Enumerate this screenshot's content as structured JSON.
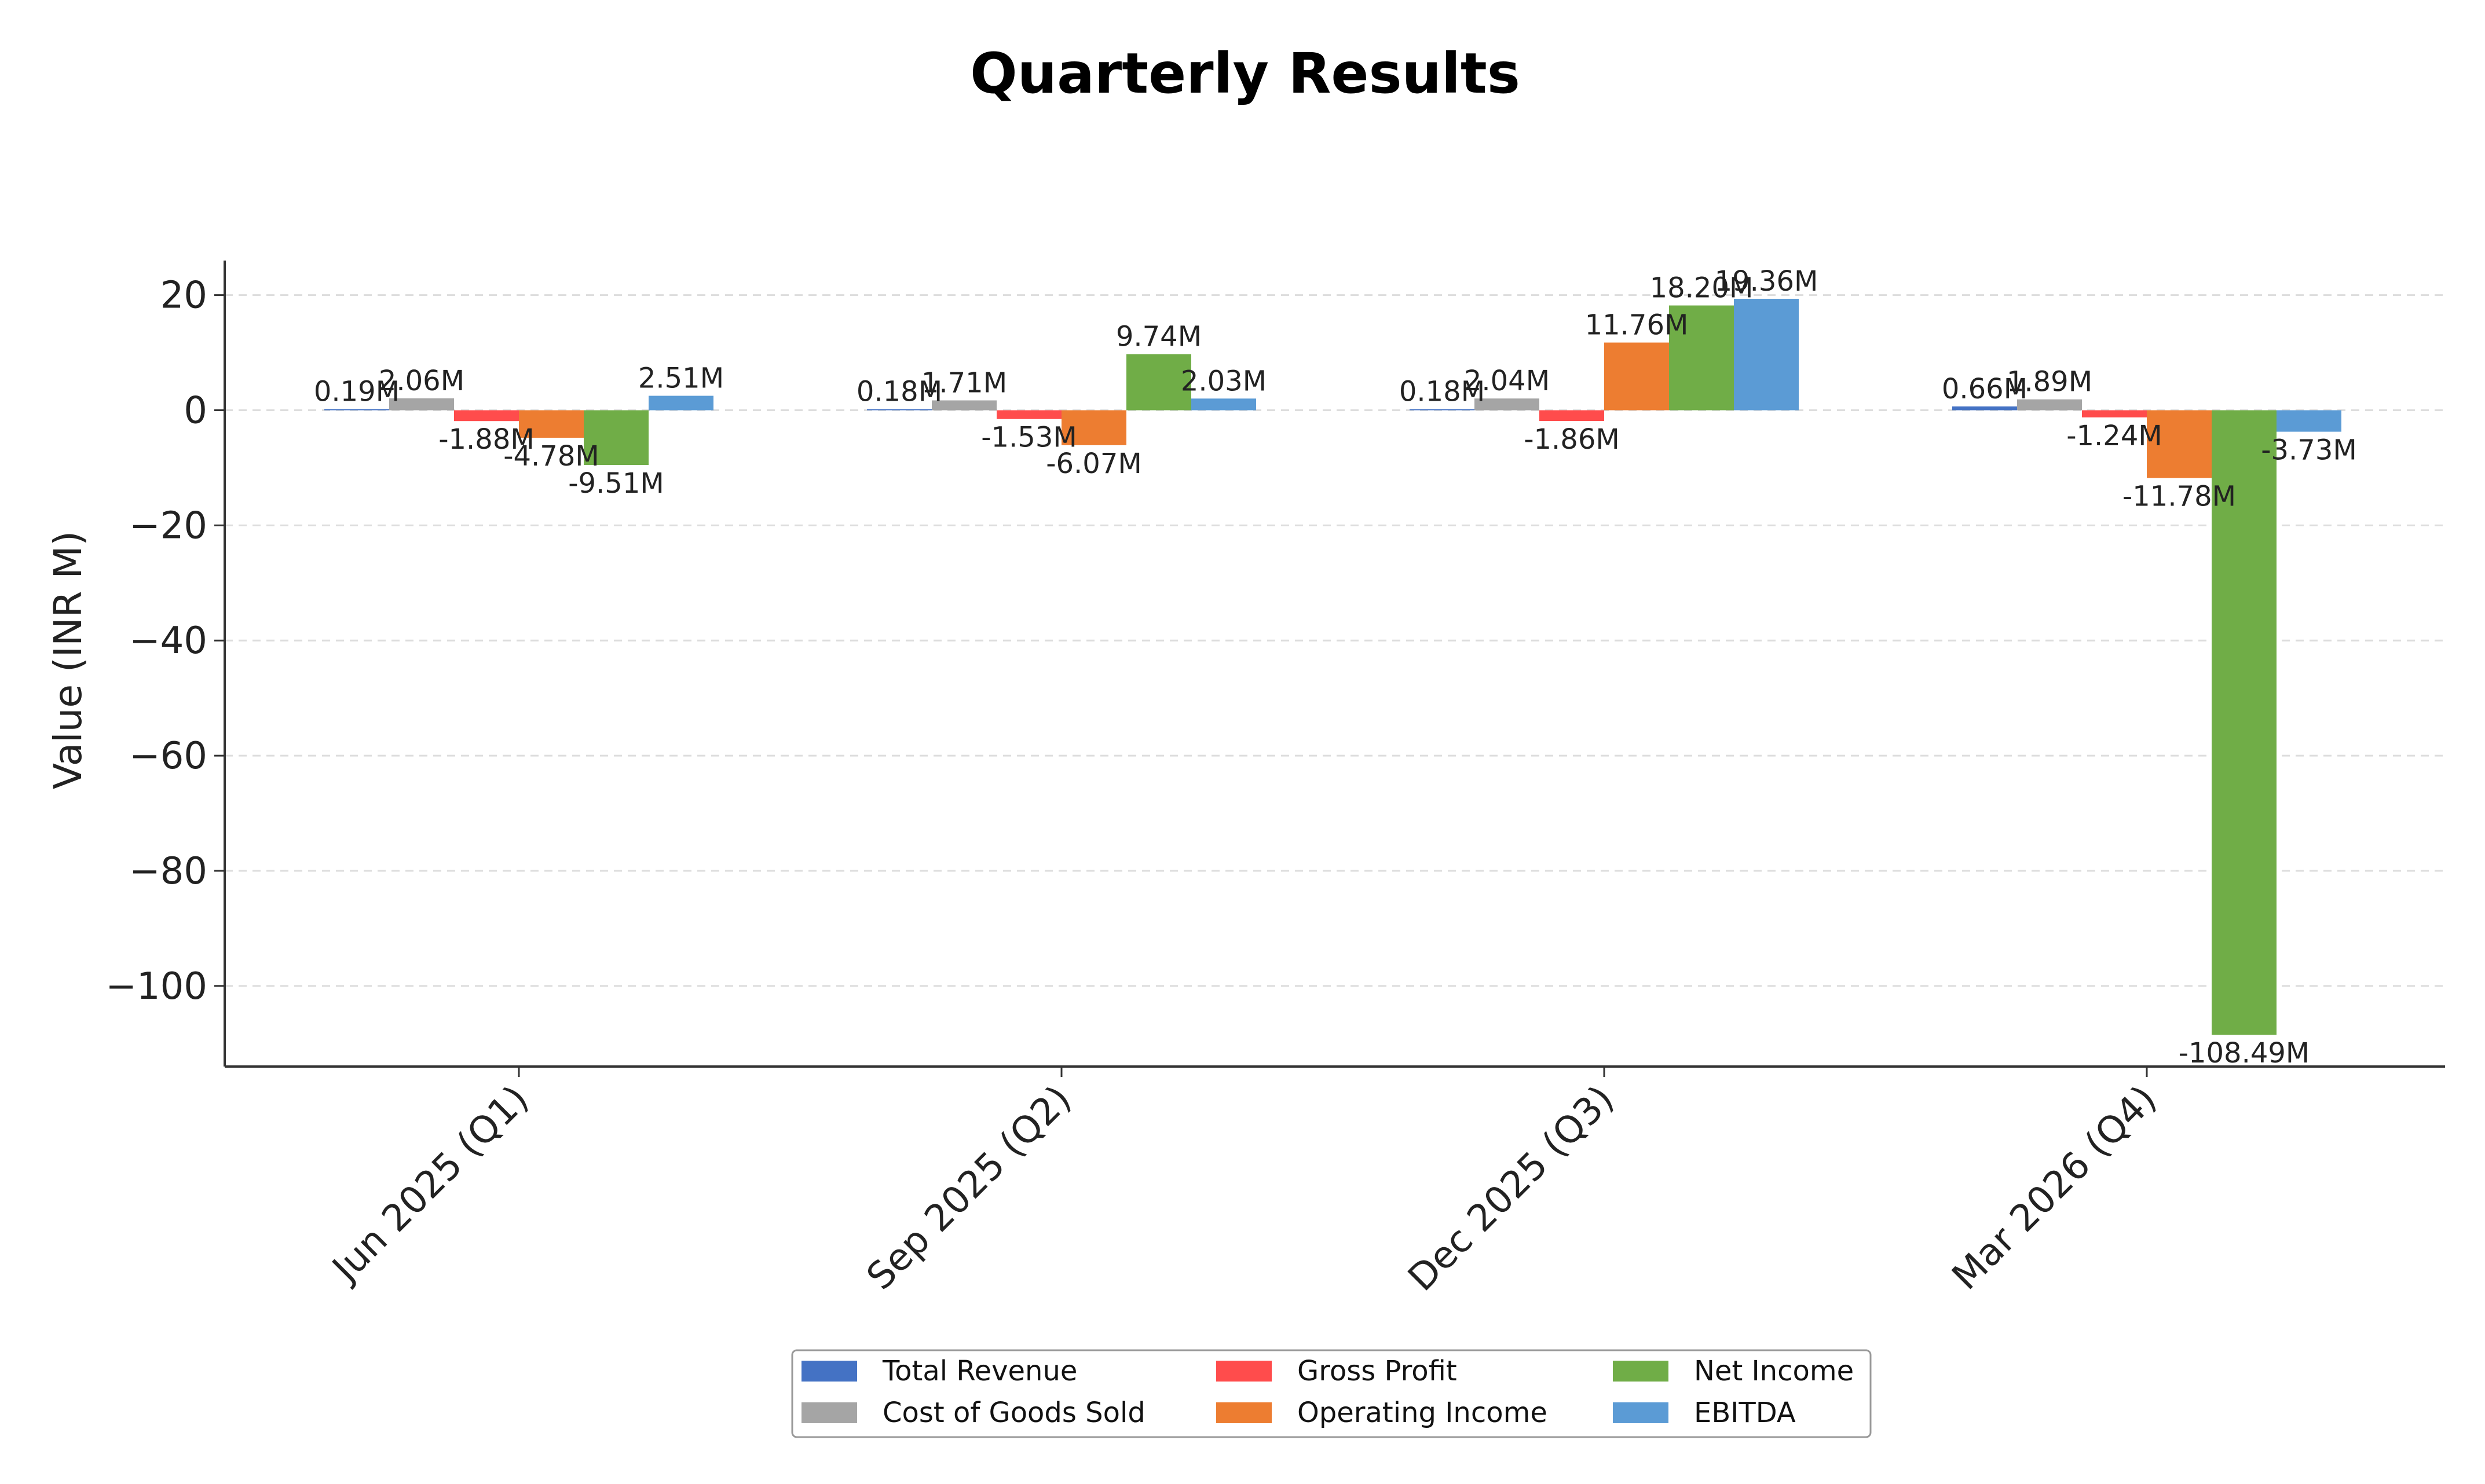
{
  "chart_data": {
    "type": "bar",
    "title": "Quarterly Results",
    "xlabel": "",
    "ylabel": "Value (INR M)",
    "ylim": [
      -114,
      26
    ],
    "yticks": [
      20,
      0,
      -20,
      -40,
      -60,
      -80,
      -100
    ],
    "ytick_labels": [
      "20",
      "0",
      "−20",
      "−40",
      "−60",
      "−80",
      "−100"
    ],
    "grid": "horizontal dashed",
    "legend_position": "bottom-center",
    "legend_columns": 3,
    "categories": [
      "Jun 2025 (Q1)",
      "Sep 2025 (Q2)",
      "Dec 2025 (Q3)",
      "Mar 2026 (Q4)"
    ],
    "series": [
      {
        "name": "Total Revenue",
        "color": "#4472C4",
        "values": [
          0.19,
          0.18,
          0.18,
          0.66
        ],
        "labels": [
          "0.19M",
          "0.18M",
          "0.18M",
          "0.66M"
        ]
      },
      {
        "name": "Cost of Goods Sold",
        "color": "#A5A5A5",
        "values": [
          2.06,
          1.71,
          2.04,
          1.89
        ],
        "labels": [
          "2.06M",
          "1.71M",
          "2.04M",
          "1.89M"
        ]
      },
      {
        "name": "Gross Profit",
        "color": "#FF4C4C",
        "values": [
          -1.88,
          -1.53,
          -1.86,
          -1.24
        ],
        "labels": [
          "-1.88M",
          "-1.53M",
          "-1.86M",
          "-1.24M"
        ]
      },
      {
        "name": "Operating Income",
        "color": "#ED7D31",
        "values": [
          -4.78,
          -6.07,
          11.76,
          -11.78
        ],
        "labels": [
          "-4.78M",
          "-6.07M",
          "11.76M",
          "-11.78M"
        ]
      },
      {
        "name": "Net Income",
        "color": "#70AD47",
        "values": [
          -9.51,
          9.74,
          18.2,
          -108.49
        ],
        "labels": [
          "-9.51M",
          "9.74M",
          "18.20M",
          "-108.49M"
        ]
      },
      {
        "name": "EBITDA",
        "color": "#5B9BD5",
        "values": [
          2.51,
          2.03,
          19.36,
          -3.73
        ],
        "labels": [
          "2.51M",
          "2.03M",
          "19.36M",
          "-3.73M"
        ]
      }
    ]
  }
}
